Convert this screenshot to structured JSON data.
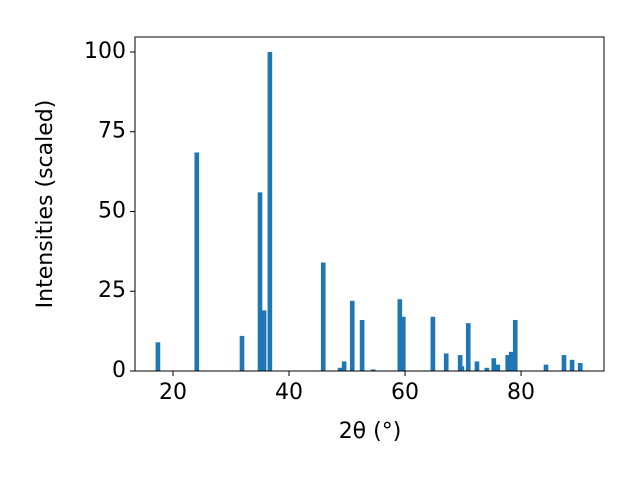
{
  "chart_data": {
    "type": "bar",
    "x_label": "2θ (°)",
    "y_label": "Intensities (scaled)",
    "x": [
      17.4,
      24.1,
      31.9,
      35.0,
      35.7,
      36.7,
      45.9,
      48.8,
      49.5,
      50.9,
      52.6,
      54.5,
      59.1,
      59.7,
      64.8,
      67.1,
      69.5,
      69.8,
      70.9,
      72.4,
      74.1,
      75.3,
      76.0,
      77.7,
      78.3,
      79.0,
      84.3,
      87.4,
      88.8,
      90.2
    ],
    "values": [
      9,
      68.5,
      11,
      56,
      19,
      100,
      34,
      1,
      3,
      22,
      16,
      0.5,
      22.5,
      17,
      17,
      5.5,
      5,
      1.5,
      15,
      3,
      1,
      4,
      2,
      5,
      6,
      16,
      2,
      5,
      3.5,
      2.5
    ],
    "color": "#1f77b4",
    "xlim": [
      13.45,
      94.3
    ],
    "ylim": [
      0,
      104.7
    ],
    "xticks": [
      20,
      40,
      60,
      80
    ],
    "yticks": [
      0,
      25,
      50,
      75,
      100
    ]
  }
}
